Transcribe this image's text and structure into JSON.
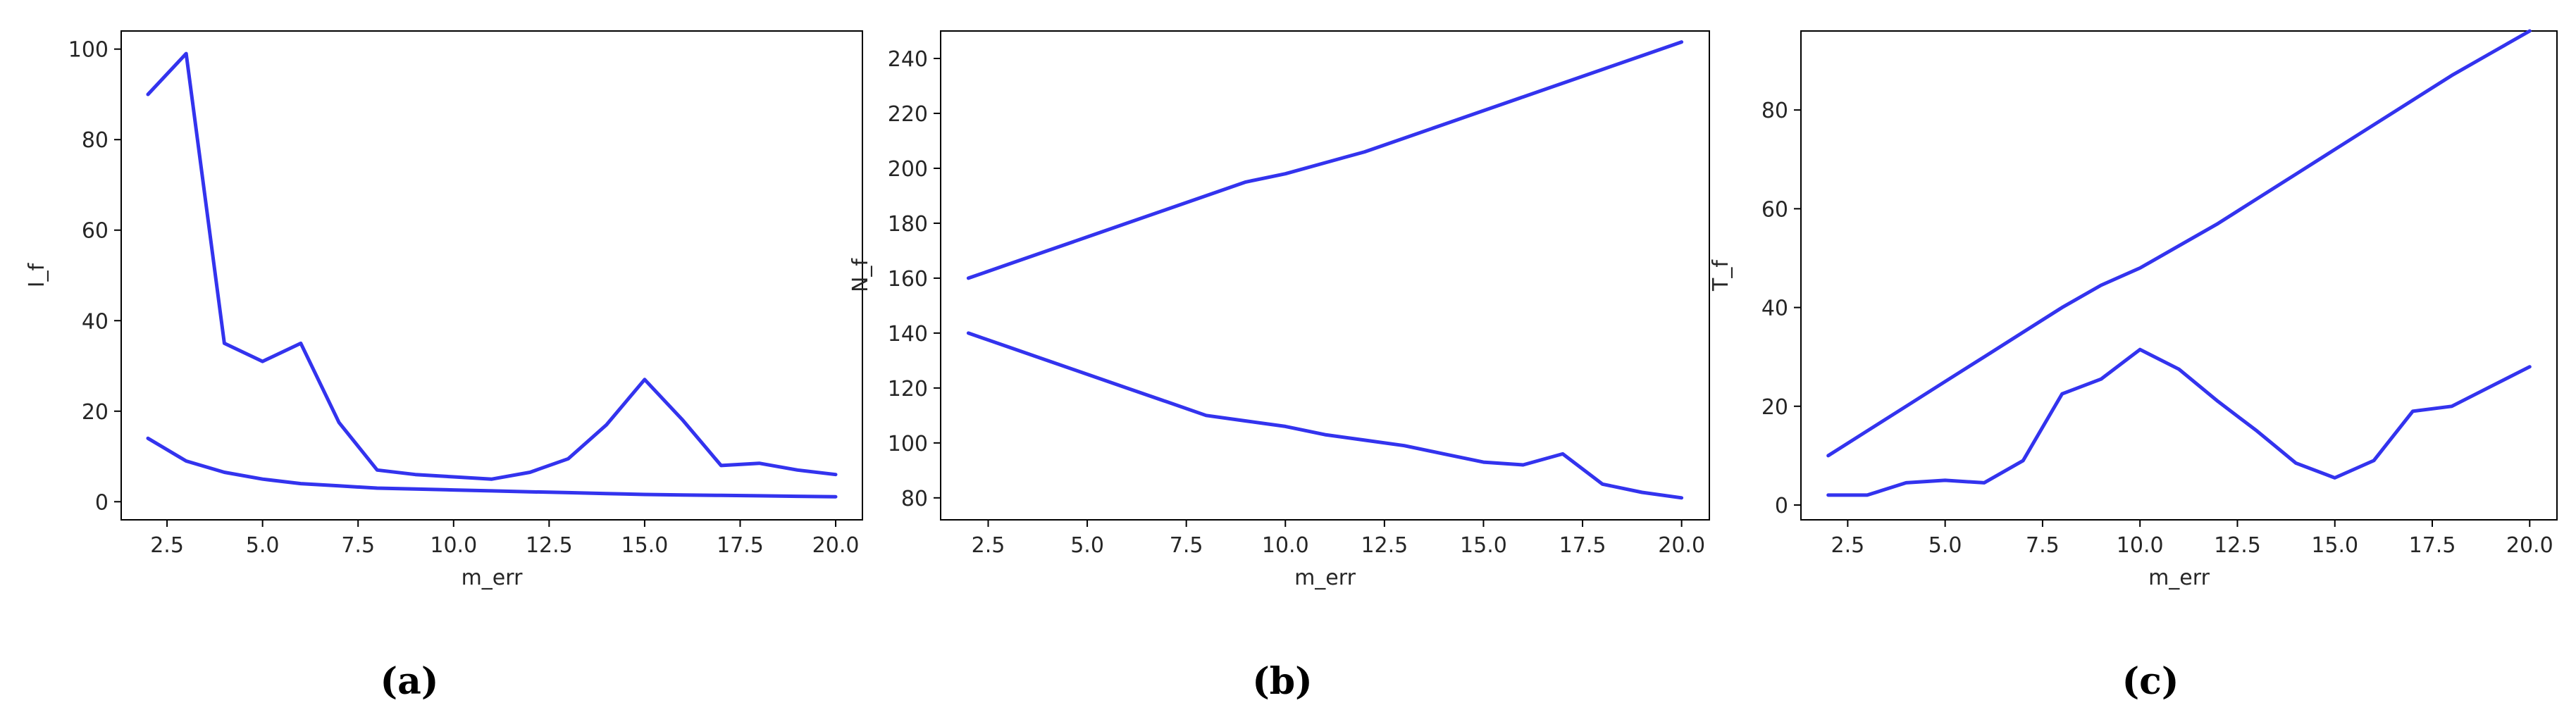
{
  "figure": {
    "captions": [
      "(a)",
      "(b)",
      "(c)"
    ]
  },
  "chart_data": [
    {
      "type": "line",
      "xlabel": "m_err",
      "ylabel": "I_f",
      "xlim": [
        1.3,
        20.7
      ],
      "ylim": [
        -4,
        104
      ],
      "xticks": [
        2.5,
        5.0,
        7.5,
        10.0,
        12.5,
        15.0,
        17.5,
        20.0
      ],
      "xtick_labels": [
        "2.5",
        "5.0",
        "7.5",
        "10.0",
        "12.5",
        "15.0",
        "17.5",
        "20.0"
      ],
      "yticks": [
        0,
        20,
        40,
        60,
        80,
        100
      ],
      "ytick_labels": [
        "0",
        "20",
        "40",
        "60",
        "80",
        "100"
      ],
      "line_color": "#3333ee",
      "grid": false,
      "x": [
        2,
        3,
        4,
        5,
        6,
        7,
        8,
        9,
        10,
        11,
        12,
        13,
        14,
        15,
        16,
        17,
        18,
        19,
        20
      ],
      "series": [
        {
          "values": [
            90,
            99,
            35,
            31,
            35,
            17.5,
            7,
            6,
            5.5,
            5,
            6.5,
            9.5,
            17,
            27,
            18,
            8,
            8.5,
            7,
            6
          ]
        },
        {
          "values": [
            14,
            9,
            6.5,
            5,
            4,
            3.5,
            3,
            2.8,
            2.6,
            2.4,
            2.2,
            2,
            1.8,
            1.6,
            1.5,
            1.4,
            1.3,
            1.2,
            1.1
          ]
        }
      ]
    },
    {
      "type": "line",
      "xlabel": "m_err",
      "ylabel": "N_f",
      "xlim": [
        1.3,
        20.7
      ],
      "ylim": [
        72,
        250
      ],
      "xticks": [
        2.5,
        5.0,
        7.5,
        10.0,
        12.5,
        15.0,
        17.5,
        20.0
      ],
      "xtick_labels": [
        "2.5",
        "5.0",
        "7.5",
        "10.0",
        "12.5",
        "15.0",
        "17.5",
        "20.0"
      ],
      "yticks": [
        80,
        100,
        120,
        140,
        160,
        180,
        200,
        220,
        240
      ],
      "ytick_labels": [
        "80",
        "100",
        "120",
        "140",
        "160",
        "180",
        "200",
        "220",
        "240"
      ],
      "line_color": "#3333ee",
      "grid": false,
      "x": [
        2,
        3,
        4,
        5,
        6,
        7,
        8,
        9,
        10,
        11,
        12,
        13,
        14,
        15,
        16,
        17,
        18,
        19,
        20
      ],
      "series": [
        {
          "values": [
            160,
            165,
            170,
            175,
            180,
            185,
            190,
            195,
            198,
            202,
            206,
            211,
            216,
            221,
            226,
            231,
            236,
            241,
            246
          ]
        },
        {
          "values": [
            140,
            135,
            130,
            125,
            120,
            115,
            110,
            108,
            106,
            103,
            101,
            99,
            96,
            93,
            92,
            96,
            85,
            82,
            80
          ]
        }
      ]
    },
    {
      "type": "line",
      "xlabel": "m_err",
      "ylabel": "T_f",
      "xlim": [
        1.3,
        20.7
      ],
      "ylim": [
        -3,
        96
      ],
      "xticks": [
        2.5,
        5.0,
        7.5,
        10.0,
        12.5,
        15.0,
        17.5,
        20.0
      ],
      "xtick_labels": [
        "2.5",
        "5.0",
        "7.5",
        "10.0",
        "12.5",
        "15.0",
        "17.5",
        "20.0"
      ],
      "yticks": [
        0,
        20,
        40,
        60,
        80
      ],
      "ytick_labels": [
        "0",
        "20",
        "40",
        "60",
        "80"
      ],
      "line_color": "#3333ee",
      "grid": false,
      "x": [
        2,
        3,
        4,
        5,
        6,
        7,
        8,
        9,
        10,
        11,
        12,
        13,
        14,
        15,
        16,
        17,
        18,
        19,
        20
      ],
      "series": [
        {
          "values": [
            10,
            15,
            20,
            25,
            30,
            35,
            40,
            44.5,
            48,
            52.5,
            57,
            62,
            67,
            72,
            77,
            82,
            87,
            91.5,
            96
          ]
        },
        {
          "values": [
            2,
            2,
            4.5,
            5,
            4.5,
            9,
            22.5,
            25.5,
            31.5,
            27.5,
            21,
            15,
            8.5,
            5.5,
            9,
            19,
            20,
            24,
            28
          ]
        }
      ]
    }
  ]
}
